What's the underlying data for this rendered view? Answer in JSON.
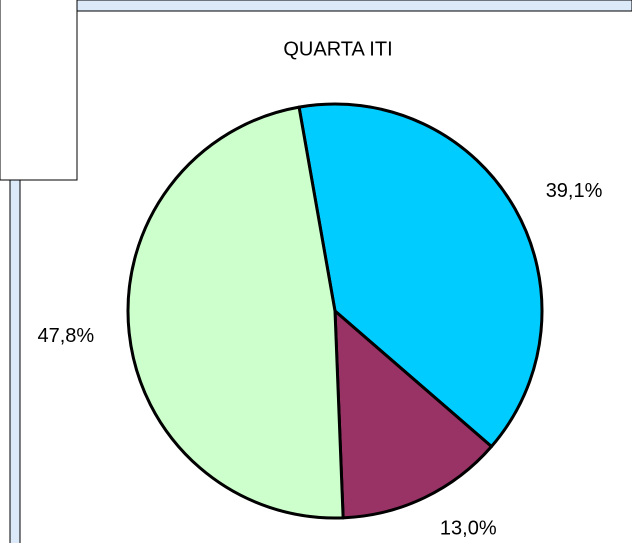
{
  "chart_data": {
    "type": "pie",
    "title": "QUARTA ITI",
    "values": [
      39.1,
      13.0,
      47.8
    ],
    "value_labels": [
      "39,1%",
      "13,0%",
      "47,8%"
    ],
    "colors": [
      "#00ccff",
      "#993366",
      "#ccffcc"
    ]
  }
}
